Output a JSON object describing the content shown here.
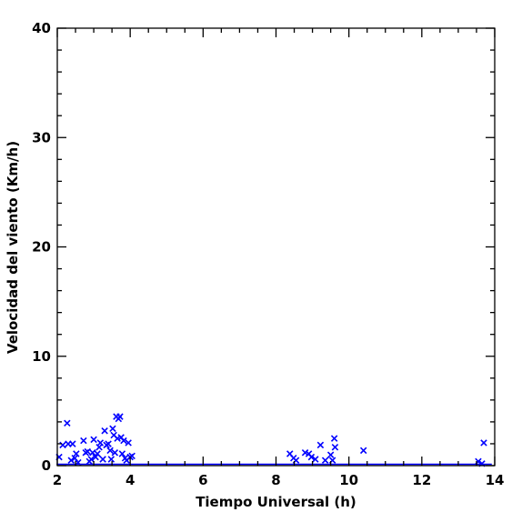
{
  "chart_data": {
    "type": "scatter",
    "title": "",
    "xlabel": "Tiempo Universal (h)",
    "ylabel": "Velocidad del viento (Km/h)",
    "xlim": [
      2,
      14
    ],
    "ylim": [
      0,
      40
    ],
    "x_ticks": [
      "2",
      "4",
      "6",
      "8",
      "10",
      "12",
      "14"
    ],
    "y_ticks": [
      "0",
      "10",
      "20",
      "30",
      "40"
    ],
    "grid": false,
    "marker": "x",
    "marker_color": "#0000ff",
    "series": [
      {
        "baseline_x_range": [
          2,
          13.9
        ],
        "baseline_y": 0,
        "points": [
          [
            2.05,
            0.7
          ],
          [
            2.15,
            1.8
          ],
          [
            2.27,
            3.8
          ],
          [
            2.3,
            1.9
          ],
          [
            2.38,
            0.4
          ],
          [
            2.42,
            1.9
          ],
          [
            2.48,
            0.6
          ],
          [
            2.52,
            1.0
          ],
          [
            2.57,
            0.2
          ],
          [
            2.72,
            2.2
          ],
          [
            2.78,
            1.1
          ],
          [
            2.83,
            1.2
          ],
          [
            2.88,
            0.3
          ],
          [
            2.93,
            0.5
          ],
          [
            2.97,
            1.1
          ],
          [
            3.0,
            2.3
          ],
          [
            3.05,
            0.7
          ],
          [
            3.1,
            1.0
          ],
          [
            3.15,
            1.6
          ],
          [
            3.18,
            2.0
          ],
          [
            3.25,
            0.5
          ],
          [
            3.3,
            3.1
          ],
          [
            3.35,
            1.8
          ],
          [
            3.4,
            1.9
          ],
          [
            3.45,
            1.3
          ],
          [
            3.48,
            0.5
          ],
          [
            3.52,
            3.3
          ],
          [
            3.55,
            2.7
          ],
          [
            3.58,
            1.1
          ],
          [
            3.62,
            4.4
          ],
          [
            3.65,
            2.4
          ],
          [
            3.68,
            4.2
          ],
          [
            3.72,
            4.4
          ],
          [
            3.75,
            2.5
          ],
          [
            3.78,
            1.0
          ],
          [
            3.82,
            2.2
          ],
          [
            3.86,
            0.6
          ],
          [
            3.9,
            0.4
          ],
          [
            3.95,
            2.0
          ],
          [
            4.0,
            0.7
          ],
          [
            4.05,
            0.8
          ],
          [
            8.38,
            1.0
          ],
          [
            8.48,
            0.6
          ],
          [
            8.55,
            0.4
          ],
          [
            8.8,
            1.1
          ],
          [
            8.9,
            1.0
          ],
          [
            8.97,
            0.7
          ],
          [
            9.08,
            0.5
          ],
          [
            9.22,
            1.8
          ],
          [
            9.35,
            0.4
          ],
          [
            9.5,
            0.9
          ],
          [
            9.55,
            0.4
          ],
          [
            9.6,
            2.4
          ],
          [
            9.62,
            1.6
          ],
          [
            10.4,
            1.3
          ],
          [
            13.55,
            0.3
          ],
          [
            13.65,
            0.1
          ],
          [
            13.7,
            2.0
          ]
        ]
      }
    ]
  }
}
